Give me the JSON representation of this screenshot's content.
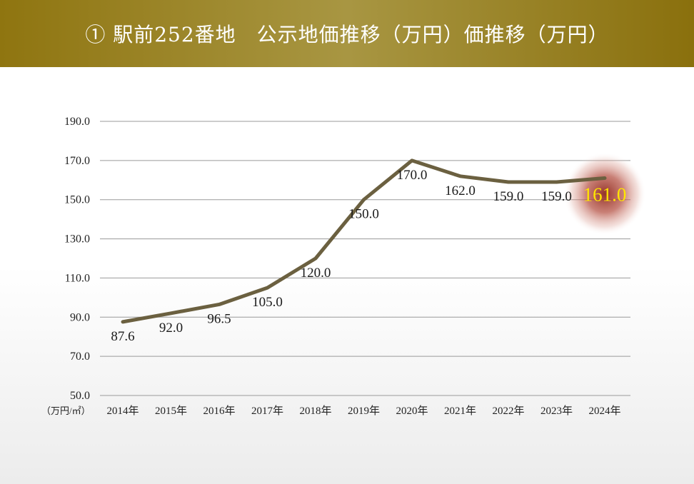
{
  "header": {
    "title": "① 駅前252番地　公示地価推移（万円）価推移（万円）"
  },
  "chart_data": {
    "type": "line",
    "title": "① 駅前252番地　公示地価推移（万円）価推移（万円）",
    "categories": [
      "2014年",
      "2015年",
      "2016年",
      "2017年",
      "2018年",
      "2019年",
      "2020年",
      "2021年",
      "2022年",
      "2023年",
      "2024年"
    ],
    "series": [
      {
        "values": [
          87.6,
          92.0,
          96.5,
          105.0,
          120.0,
          150.0,
          170.0,
          162.0,
          159.0,
          159.0,
          161.0
        ],
        "labels": [
          "87.6",
          "92.0",
          "96.5",
          "105.0",
          "120.0",
          "150.0",
          "170.0",
          "162.0",
          "159.0",
          "159.0",
          "161.0"
        ]
      }
    ],
    "ylim": [
      50,
      190
    ],
    "yticks": [
      "50.0",
      "70.0",
      "90.0",
      "110.0",
      "130.0",
      "150.0",
      "170.0",
      "190.0"
    ],
    "unit_label": "（万円/㎡）",
    "grid": true,
    "line_color": "#6b6040",
    "highlight_color": "#ffe600",
    "highlight_glow_color": "#b24a3c"
  }
}
